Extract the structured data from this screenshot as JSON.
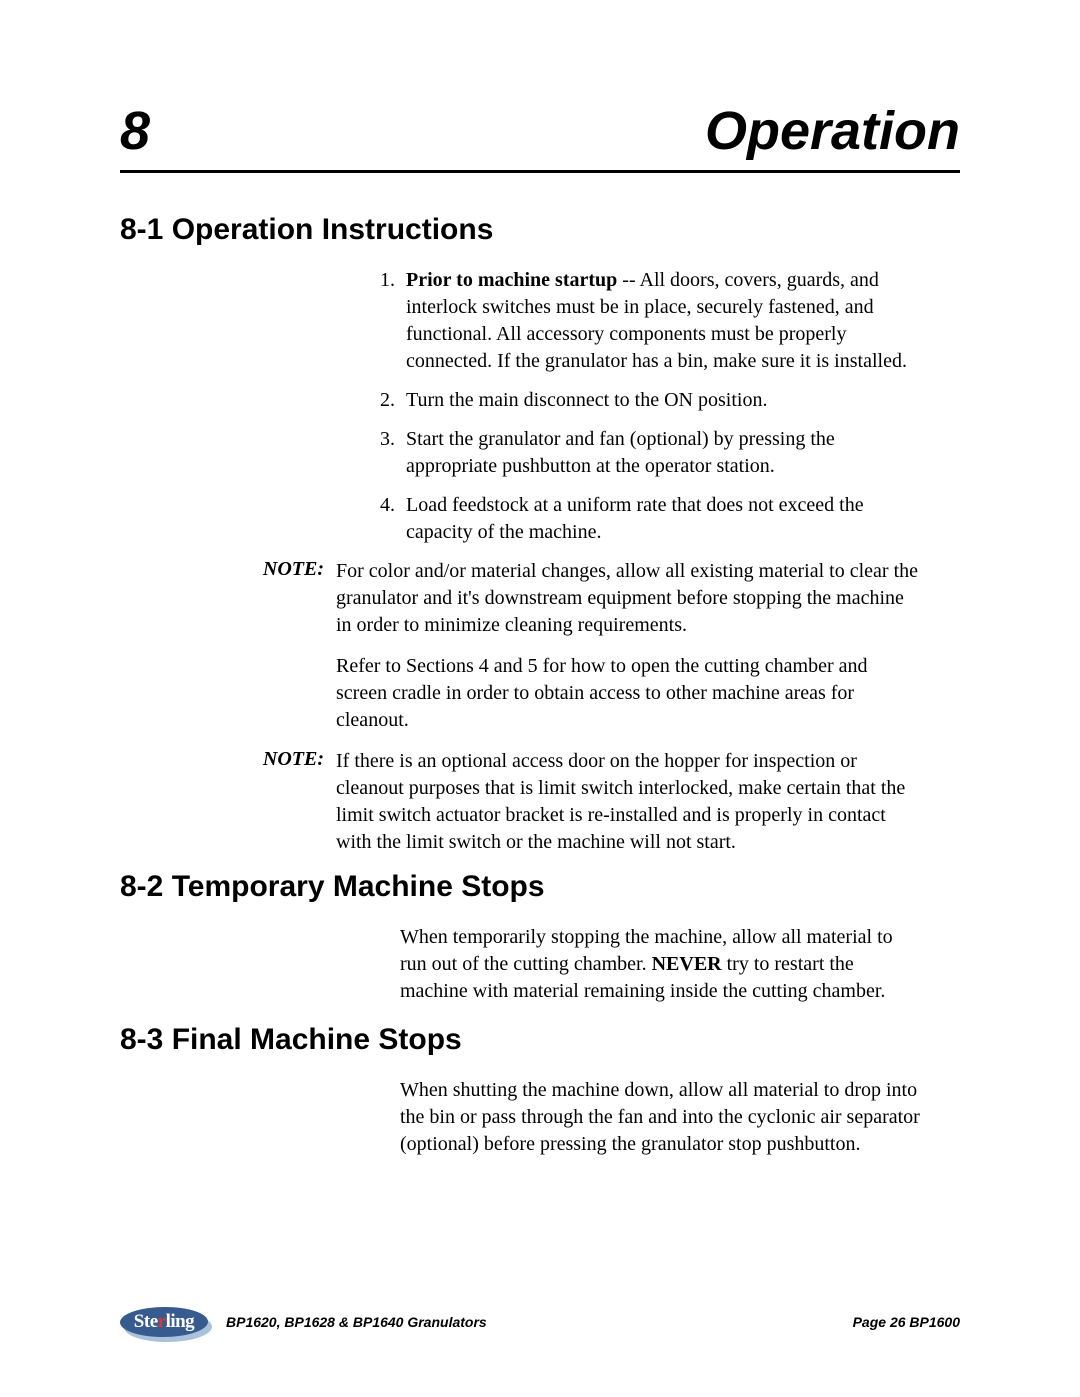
{
  "chapter": {
    "number": "8",
    "title": "Operation"
  },
  "sections": {
    "s1": {
      "heading": "8-1 Operation Instructions",
      "items": {
        "i1_prefix": "Prior to machine startup",
        "i1": " -- All doors, covers, guards, and interlock switches must be in place, securely fastened, and functional.  All accessory components must be properly connected.  If the granulator has a bin, make sure it is installed.",
        "i2": "Turn the main disconnect to the ON position.",
        "i3": "Start the granulator and fan (optional) by pressing the appropriate pushbutton at the operator station.",
        "i4": "Load feedstock at a uniform rate that does not exceed the capacity of the machine."
      },
      "note1_label": "NOTE:",
      "note1": "For color and/or material changes, allow all existing material to clear the granulator and it's downstream equipment before stopping the machine in order to minimize cleaning requirements.",
      "note1_cont": "Refer to Sections 4 and 5 for how to open the cutting chamber and screen cradle in order to obtain access to other machine areas for cleanout.",
      "note2_label": "NOTE:",
      "note2": "If there is an optional access door on the hopper for inspection or cleanout purposes that is limit switch interlocked, make certain that the limit switch actuator bracket is re-installed and is properly in contact with the limit switch or the machine will not start."
    },
    "s2": {
      "heading": "8-2 Temporary Machine Stops",
      "para_a": "When temporarily stopping the machine, allow all material to run out of the cutting chamber.  ",
      "para_bold": "NEVER",
      "para_b": " try to restart the machine with material remaining inside the cutting chamber."
    },
    "s3": {
      "heading": "8-3 Final Machine Stops",
      "para": "When shutting the machine down, allow all material to drop into the bin or pass through the fan and into the cyclonic air separator (optional) before pressing the granulator stop pushbutton."
    }
  },
  "footer": {
    "logo_text_a": "Ste",
    "logo_text_bar": "r",
    "logo_text_b": "ling",
    "doc": "BP1620, BP1628 & BP1640 Granulators",
    "page": "Page 26 BP1600"
  }
}
